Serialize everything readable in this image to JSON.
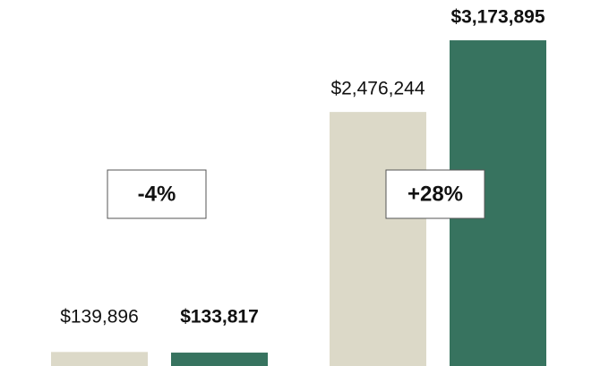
{
  "chart_data": {
    "type": "bar",
    "categories": [
      null,
      null
    ],
    "series": [
      {
        "color": "#dcd9c8",
        "values": [
          139896,
          2476244
        ],
        "value_labels": [
          "$139,896",
          "$2,476,244"
        ]
      },
      {
        "color": "#37735f",
        "values": [
          133817,
          3173895
        ],
        "value_labels": [
          "$133,817",
          "$3,173,895"
        ]
      }
    ],
    "annotations": [
      "-4%",
      "+28%"
    ],
    "ylim": [
      0,
      3500000
    ]
  }
}
